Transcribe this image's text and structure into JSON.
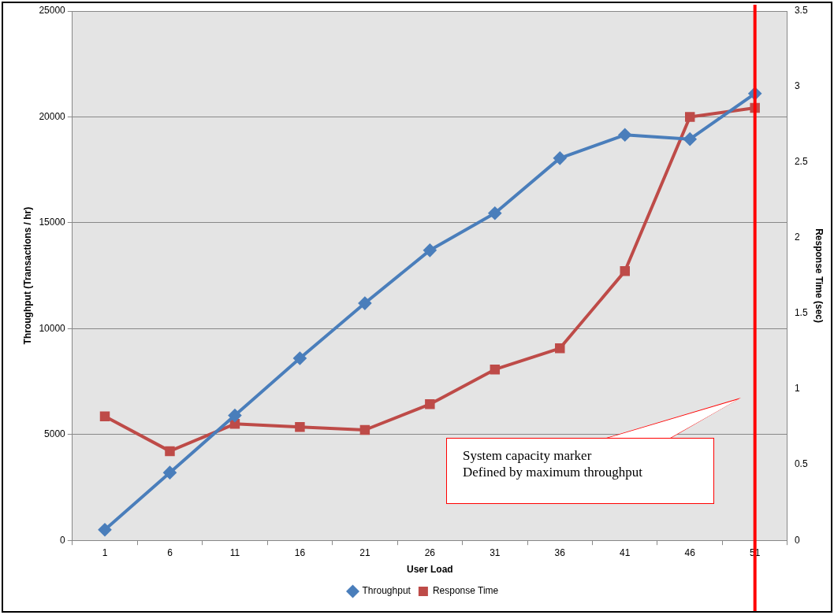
{
  "chart_data": {
    "type": "line",
    "xlabel": "User Load",
    "ylabel": "Throughput (Transactions / hr)",
    "y2label": "Response Time (sec)",
    "categories": [
      "1",
      "6",
      "11",
      "16",
      "21",
      "26",
      "31",
      "36",
      "41",
      "46",
      "51"
    ],
    "series": [
      {
        "name": "Throughput",
        "color": "#4a7ebb",
        "marker": "diamond",
        "values": [
          500,
          3200,
          5900,
          8600,
          11200,
          13700,
          15450,
          18050,
          19150,
          18950,
          21100
        ]
      },
      {
        "name": "Response Time",
        "color": "#be4b48",
        "marker": "square",
        "axis": "y2",
        "values": [
          0.82,
          0.59,
          0.77,
          0.75,
          0.73,
          0.9,
          1.13,
          1.27,
          1.78,
          2.8,
          2.86
        ]
      }
    ],
    "ylim": [
      0,
      25000
    ],
    "yticks": [
      0,
      5000,
      10000,
      15000,
      20000,
      25000
    ],
    "y2lim": [
      0,
      3.5
    ],
    "y2ticks": [
      0,
      0.5,
      1,
      1.5,
      2,
      2.5,
      3,
      3.5
    ],
    "grid": "y",
    "legend": "bottom",
    "line_style": "solid",
    "ref_lines": [
      {
        "axis": "x",
        "value": "51",
        "color": "#ff0000"
      }
    ],
    "annotations": [
      "System capacity marker",
      "Defined by maximum throughput"
    ]
  }
}
